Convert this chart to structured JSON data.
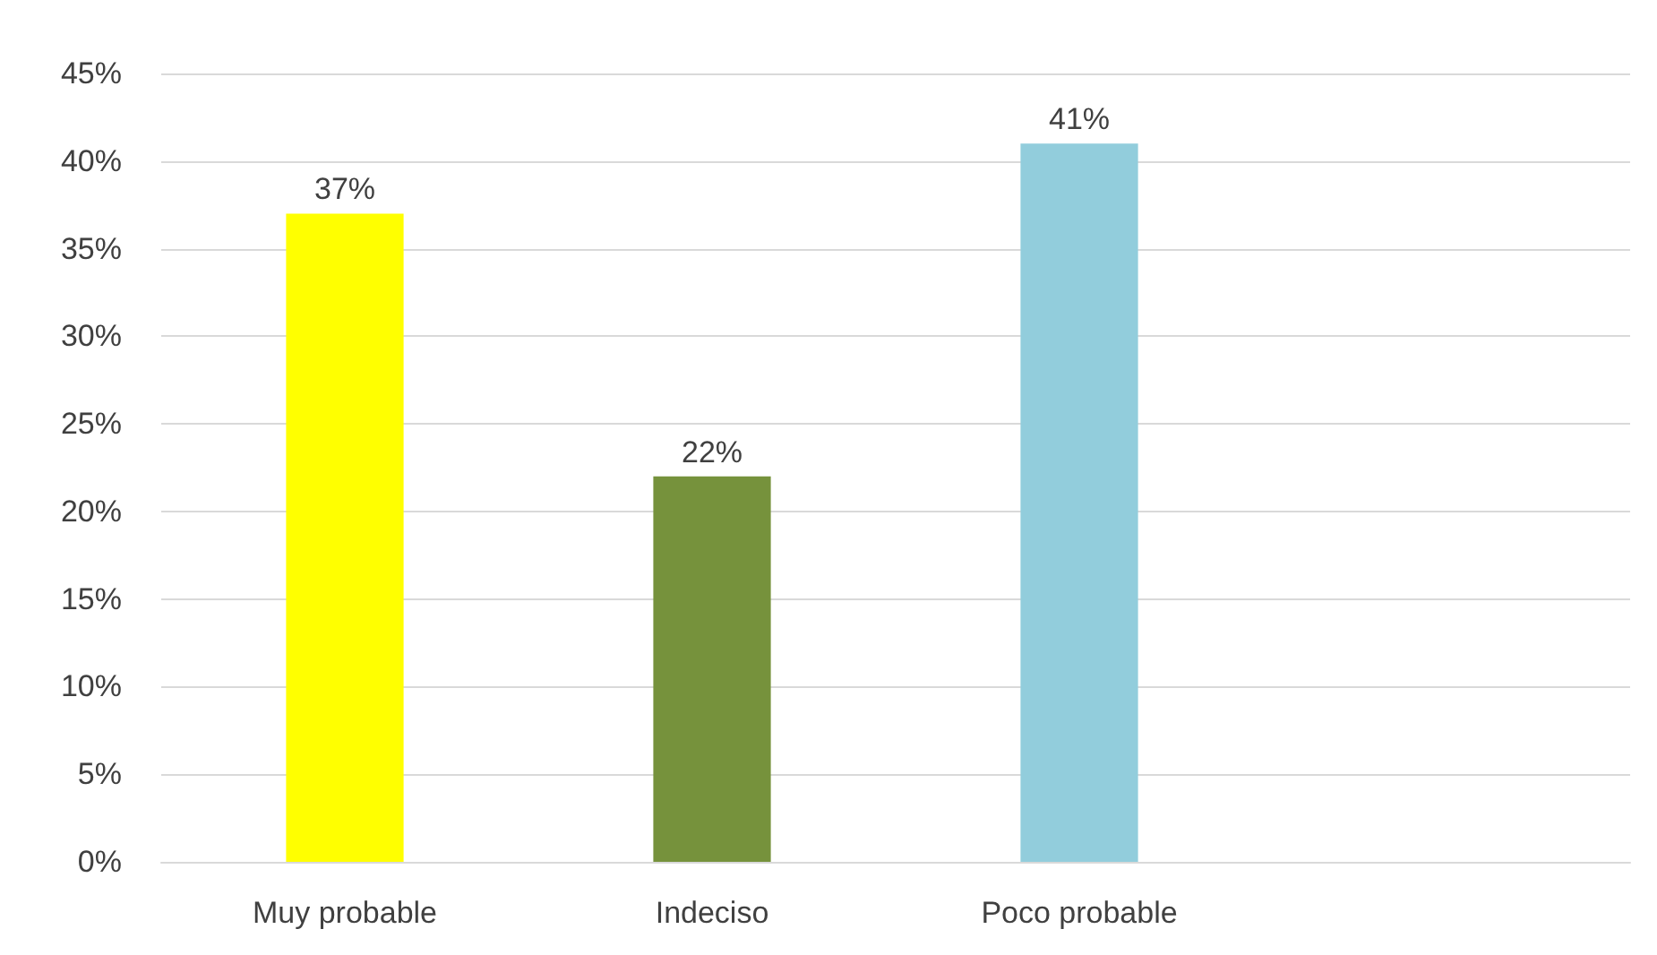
{
  "chart_data": {
    "type": "bar",
    "categories": [
      "Muy probable",
      "Indeciso",
      "Poco probable",
      null
    ],
    "values": [
      37,
      22,
      41,
      null
    ],
    "colors": [
      "#ffff00",
      "#76923c",
      "#92cddc",
      null
    ],
    "value_labels": [
      "37%",
      "22%",
      "41%",
      null
    ],
    "ylim": [
      0,
      45
    ],
    "yticks": [
      {
        "value": 0,
        "label": "0%"
      },
      {
        "value": 5,
        "label": "5%"
      },
      {
        "value": 10,
        "label": "10%"
      },
      {
        "value": 15,
        "label": "15%"
      },
      {
        "value": 20,
        "label": "20%"
      },
      {
        "value": 25,
        "label": "25%"
      },
      {
        "value": 30,
        "label": "30%"
      },
      {
        "value": 35,
        "label": "35%"
      },
      {
        "value": 40,
        "label": "40%"
      },
      {
        "value": 45,
        "label": "45%"
      }
    ],
    "grid": "y"
  }
}
